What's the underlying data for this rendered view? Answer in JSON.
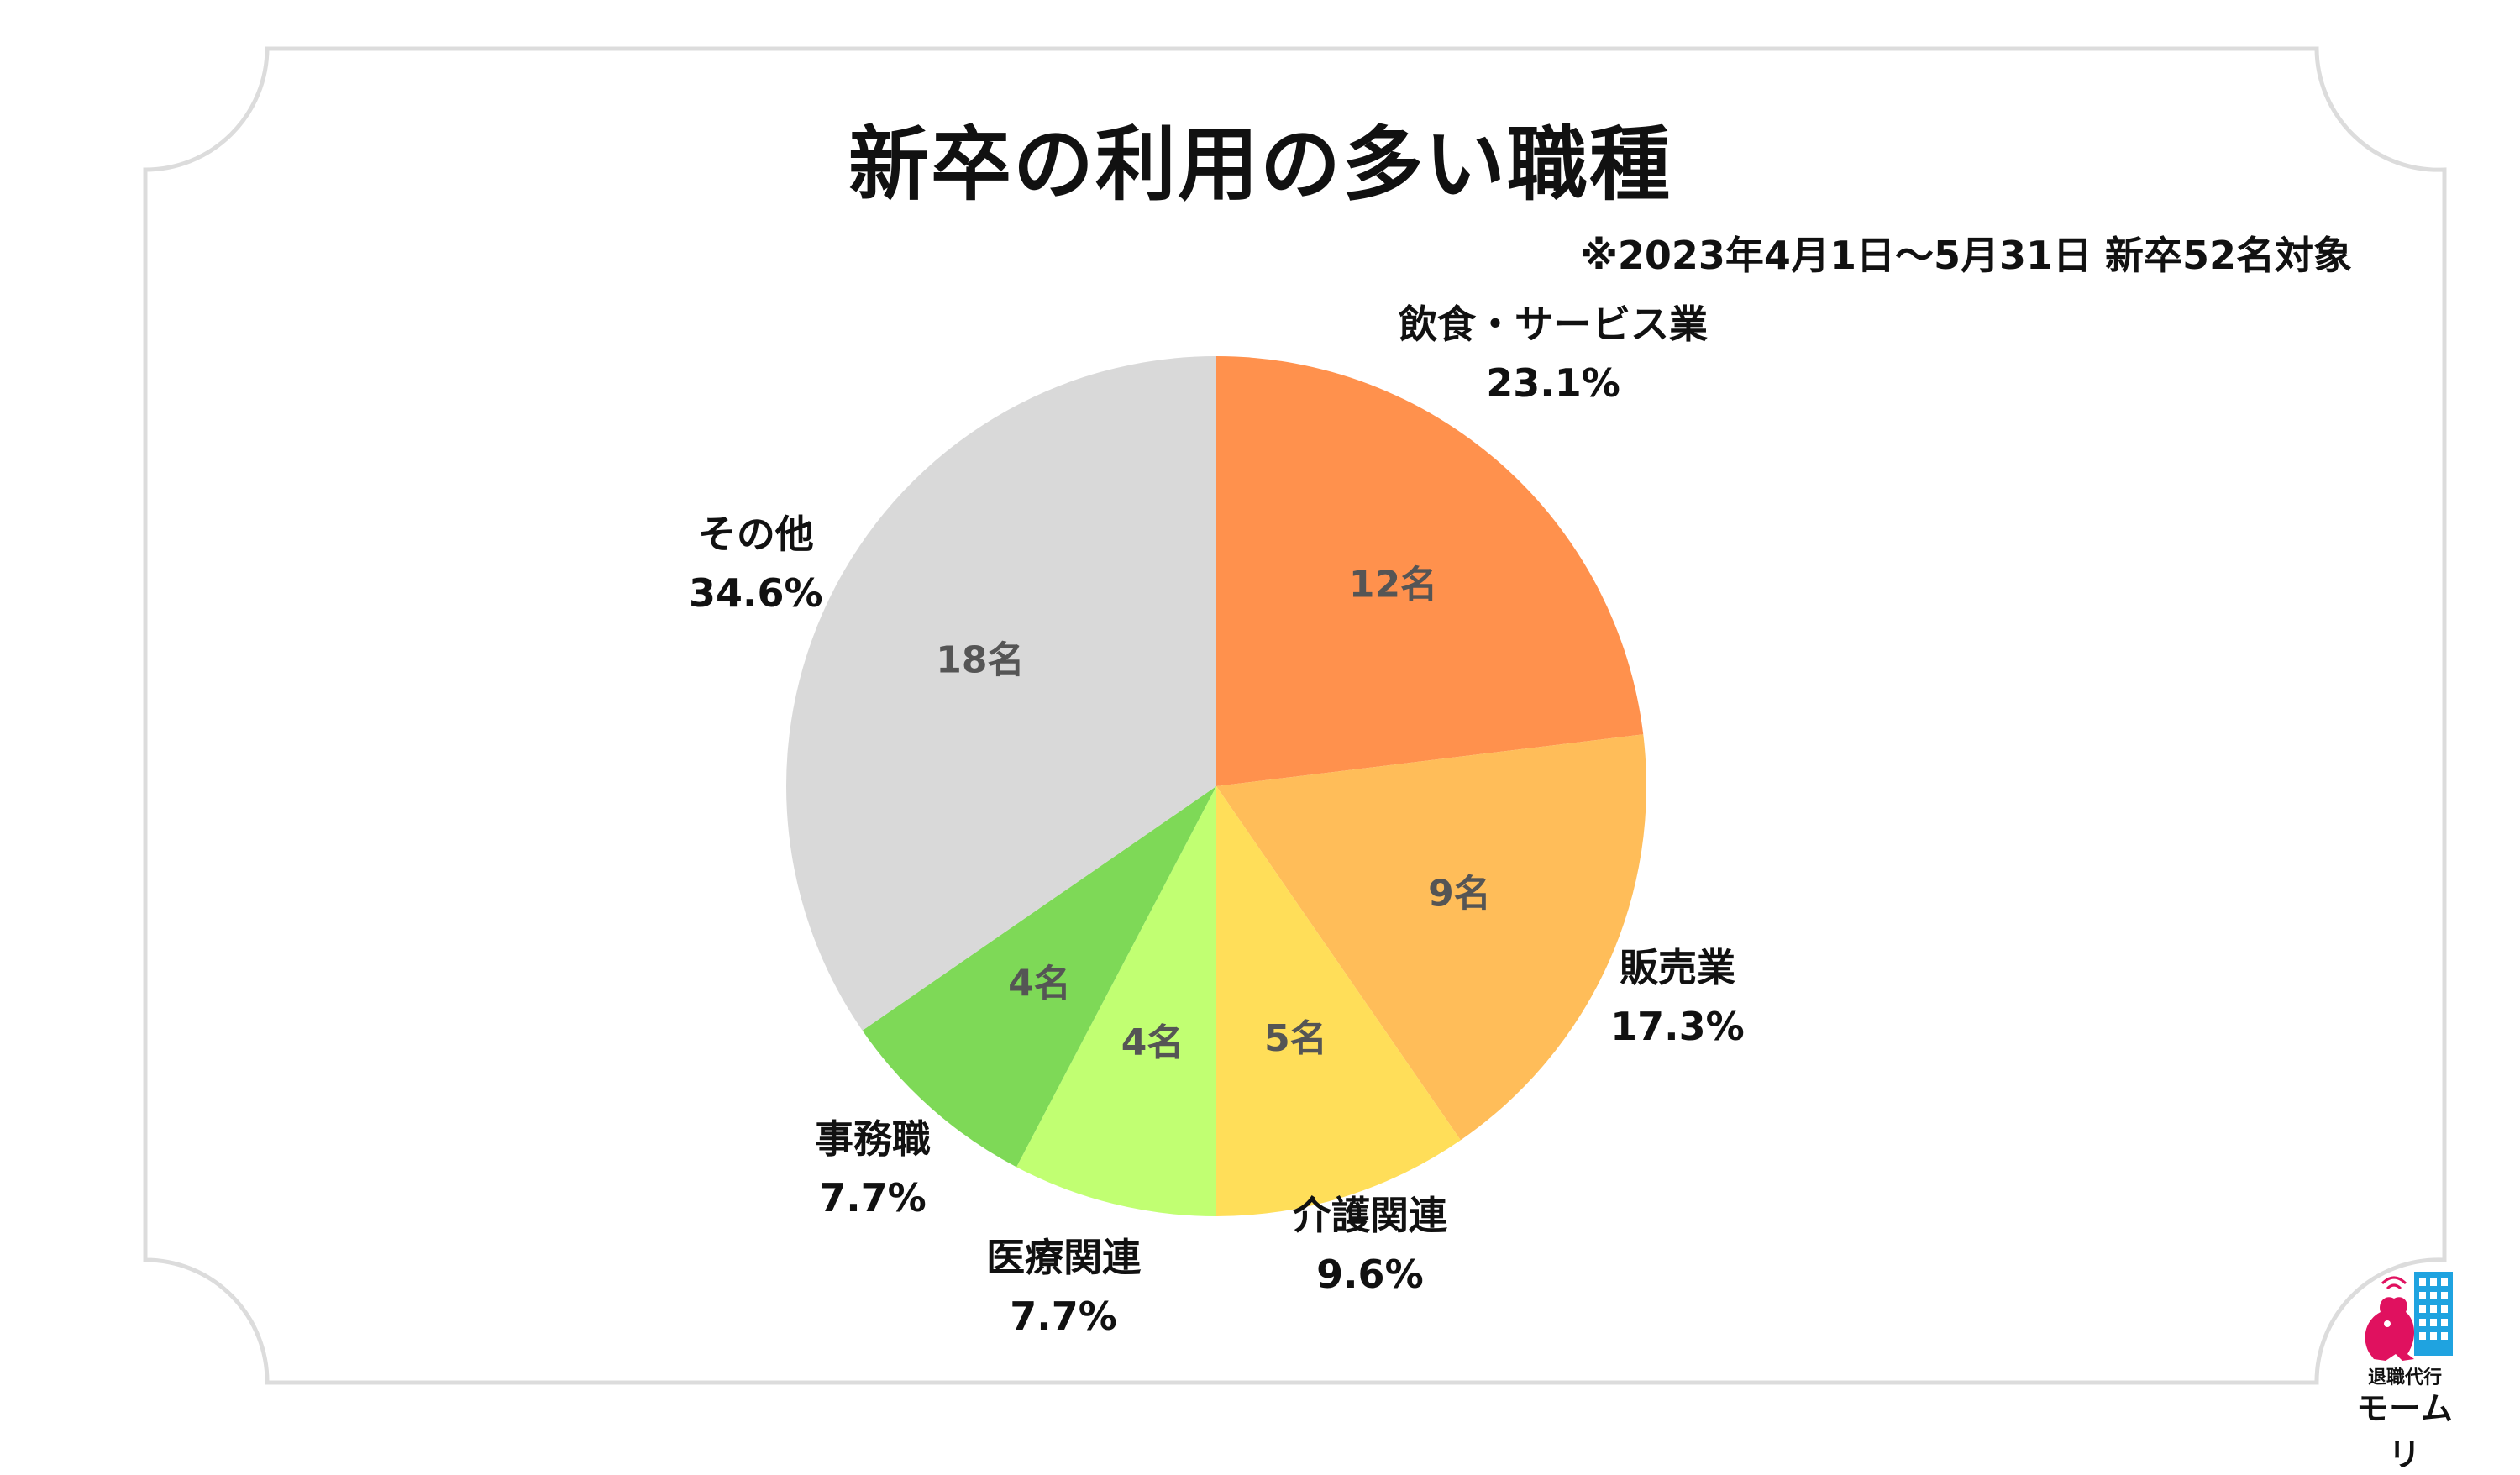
{
  "title": "新卒の利用の多い職種",
  "subtitle": "※2023年4月1日〜5月31日 新卒52名対象",
  "chart_data": {
    "type": "pie",
    "title": "新卒の利用の多い職種",
    "total": 52,
    "slices": [
      {
        "name": "飲食・サービス業",
        "count": 12,
        "count_label": "12名",
        "percent_label": "23.1%",
        "color": "#FF914D"
      },
      {
        "name": "販売業",
        "count": 9,
        "count_label": "9名",
        "percent_label": "17.3%",
        "color": "#FFBD59"
      },
      {
        "name": "介護関連",
        "count": 5,
        "count_label": "5名",
        "percent_label": "9.6%",
        "color": "#FFDE59"
      },
      {
        "name": "医療関連",
        "count": 4,
        "count_label": "4名",
        "percent_label": "7.7%",
        "color": "#C1FF72"
      },
      {
        "name": "事務職",
        "count": 4,
        "count_label": "4名",
        "percent_label": "7.7%",
        "color": "#7ED957"
      },
      {
        "name": "その他",
        "count": 18,
        "count_label": "18名",
        "percent_label": "34.6%",
        "color": "#D9D9D9"
      }
    ]
  },
  "logo": {
    "line1": "退職代行",
    "line2": "モームリ",
    "accent": "#E0115F",
    "building": "#1FA3E0"
  }
}
